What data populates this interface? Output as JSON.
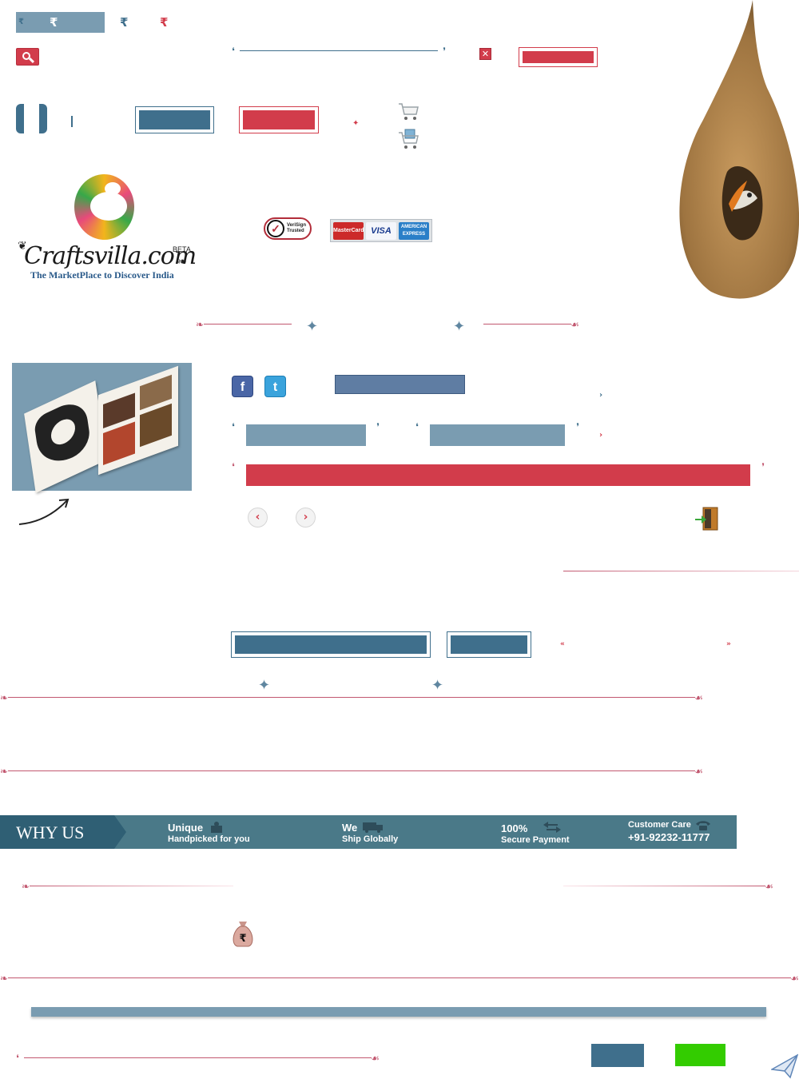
{
  "currency": {
    "symbol": "₹"
  },
  "logo": {
    "name": "Craftsvilla.com",
    "beta": "BETA",
    "tagline": "The MarketPlace to Discover India"
  },
  "security": {
    "verisign_line1": "VeriSign",
    "verisign_line2": "Trusted"
  },
  "payment_cards": [
    "MasterCard",
    "VISA",
    "AMERICAN EXPRESS"
  ],
  "why_us": {
    "title": "WHY US",
    "items": [
      {
        "line1": "Unique",
        "line2": "Handpicked for you"
      },
      {
        "line1": "We",
        "line2": "Ship Globally"
      },
      {
        "line1": "100%",
        "line2": "Secure Payment"
      },
      {
        "line1": "Customer Care",
        "line2": "+91-92232-11777"
      }
    ]
  },
  "colors": {
    "accent_red": "#d23c4b",
    "accent_blue": "#3f6f8c",
    "light_blue": "#7a9cb1",
    "ornament_red": "#c25870",
    "green": "#33cc00"
  },
  "icons": {
    "search": "search-icon",
    "close": "close-icon",
    "cart": "cart-icon",
    "gift_cart": "gift-cart-icon",
    "facebook": "facebook-icon",
    "twitter": "twitter-icon",
    "logout": "exit-door-icon",
    "send": "send-icon",
    "money_bag": "money-bag-icon"
  }
}
